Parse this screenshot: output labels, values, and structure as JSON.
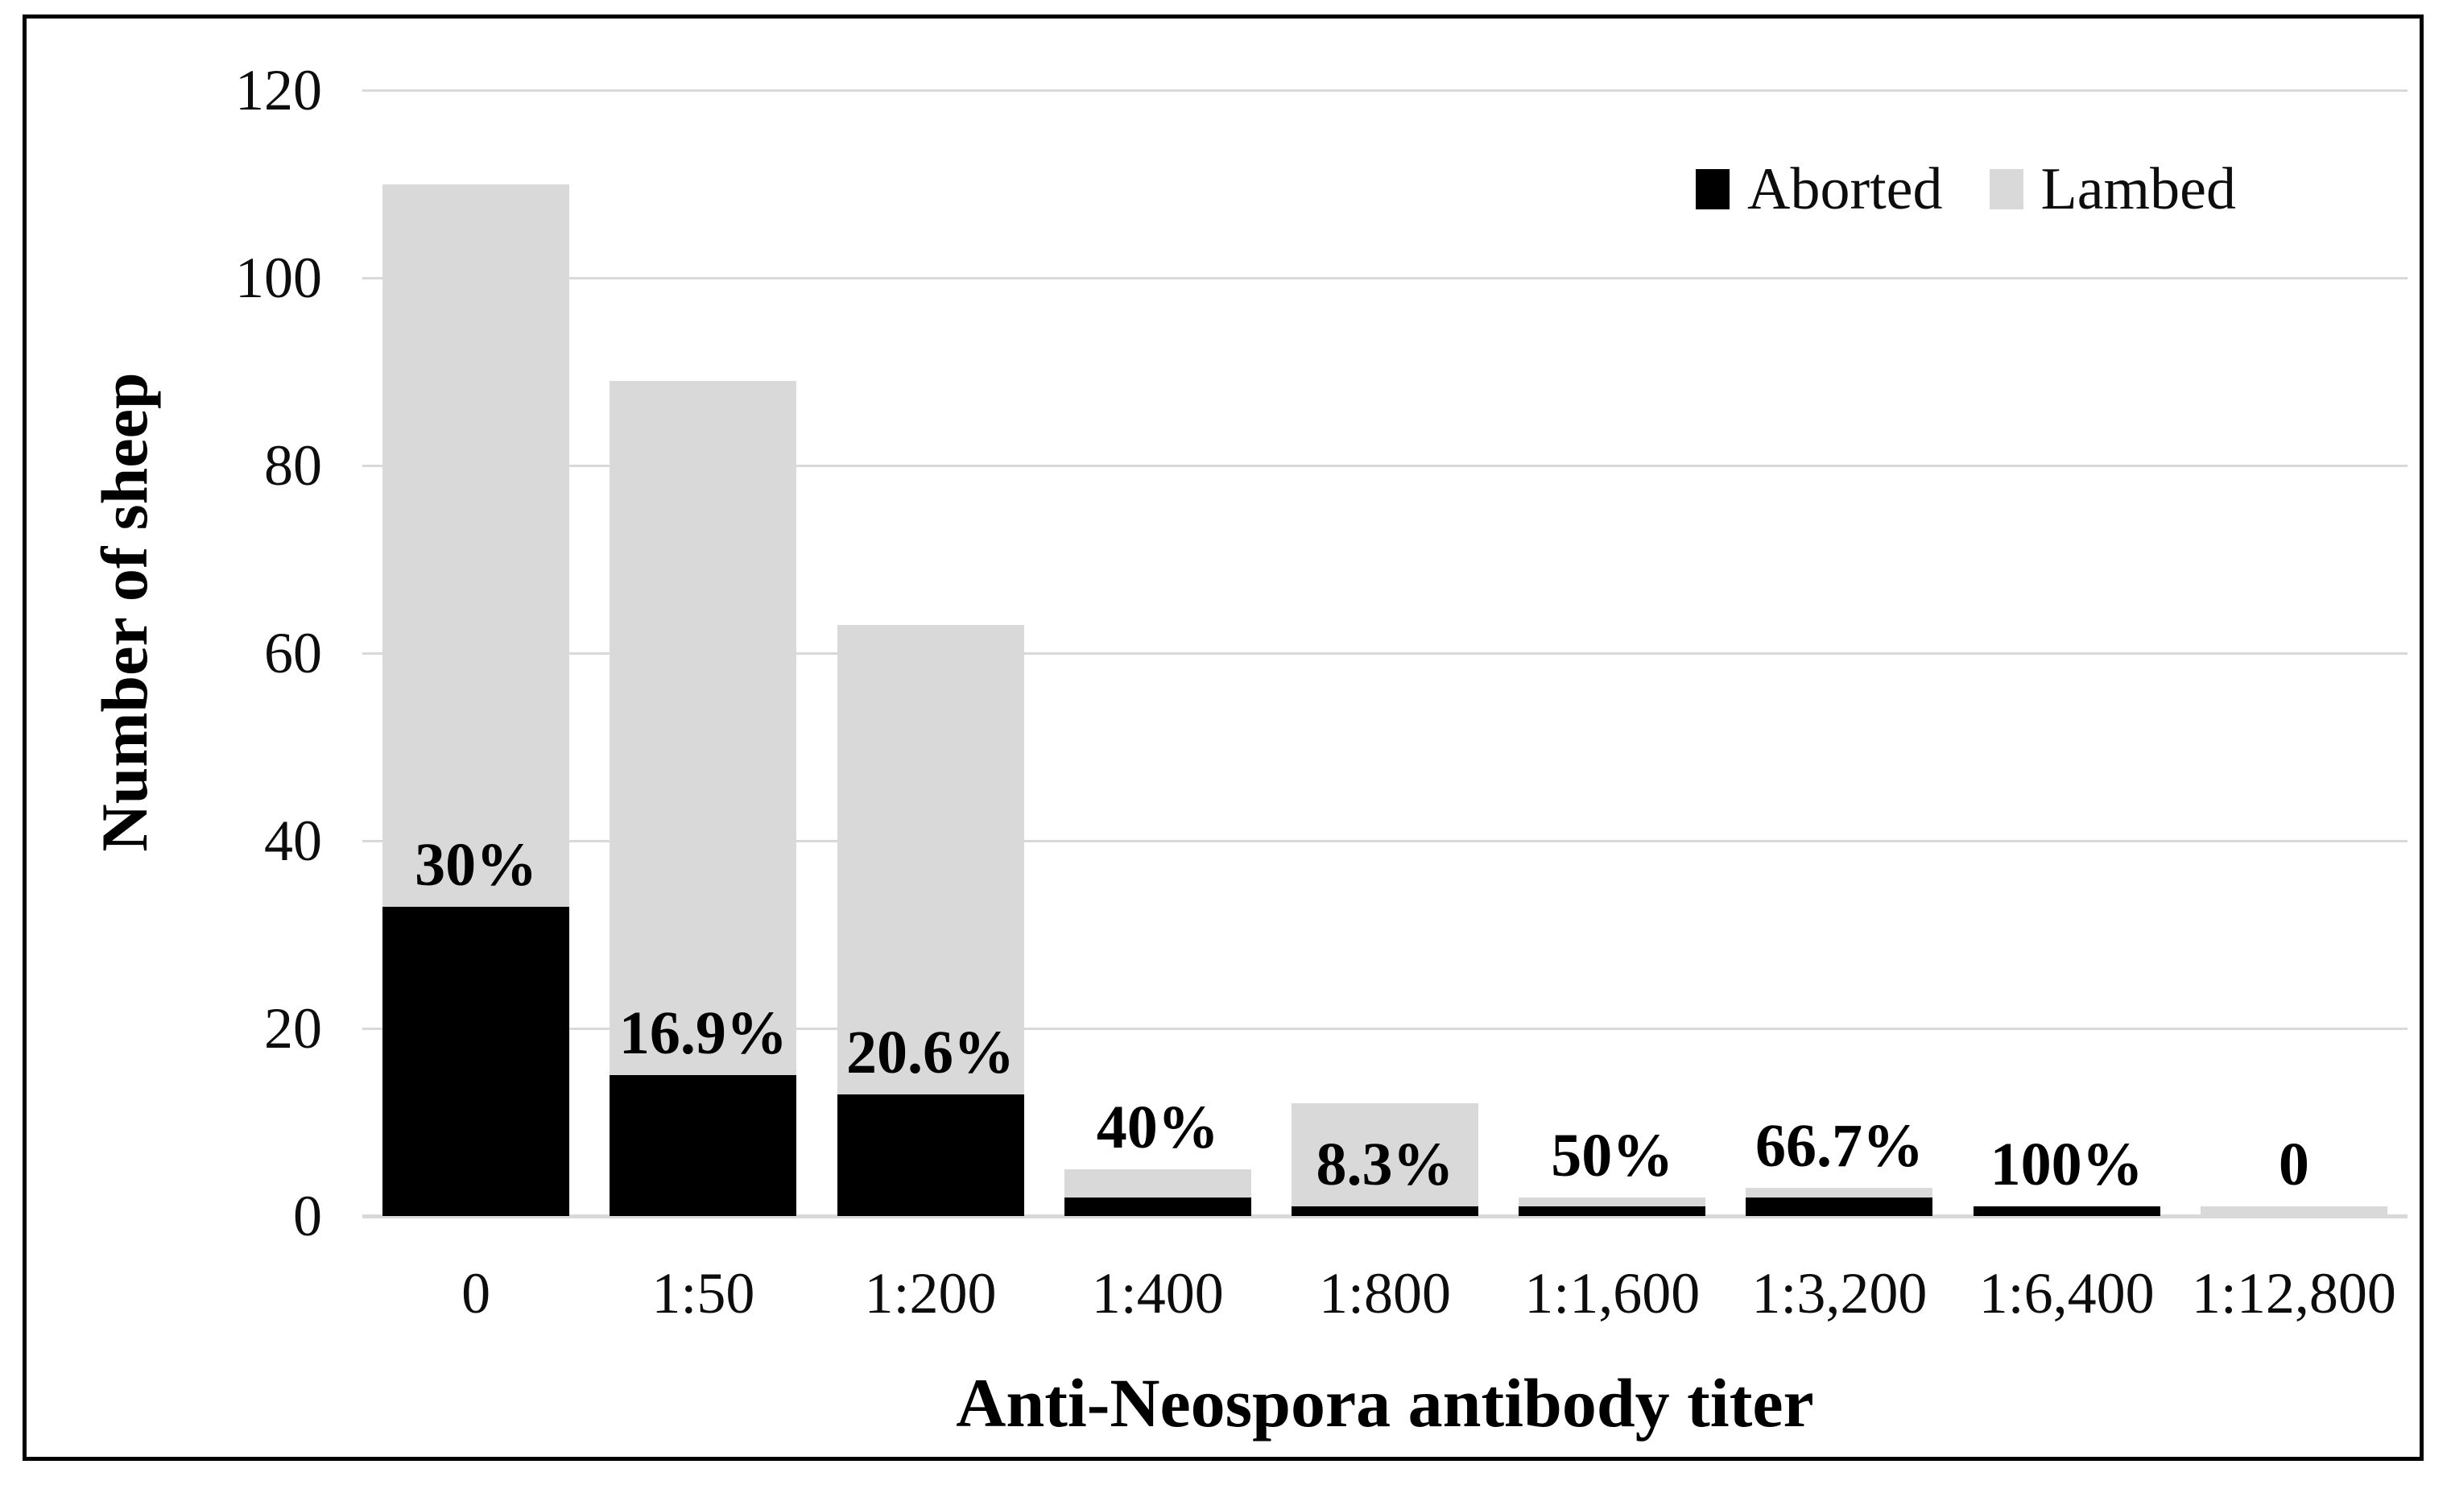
{
  "chart_data": {
    "type": "bar",
    "stacked": true,
    "categories": [
      "0",
      "1:50",
      "1:200",
      "1:400",
      "1:800",
      "1:1,600",
      "1:3,200",
      "1:6,400",
      "1:12,800"
    ],
    "series": [
      {
        "name": "Aborted",
        "color": "#000000",
        "values": [
          33,
          15,
          13,
          2,
          1,
          1,
          2,
          1,
          0
        ]
      },
      {
        "name": "Lambed",
        "color": "#d9d9d9",
        "values": [
          77,
          74,
          50,
          3,
          11,
          1,
          1,
          0,
          1
        ]
      }
    ],
    "totals": [
      110,
      89,
      63,
      5,
      12,
      2,
      3,
      1,
      1
    ],
    "data_labels": [
      "30%",
      "16.9%",
      "20.6%",
      "40%",
      "8.3%",
      "50%",
      "66.7%",
      "100%",
      "0"
    ],
    "xlabel": "Anti-Neospora antibody titer",
    "ylabel": "Number of sheep",
    "ylim": [
      0,
      120
    ],
    "yticks": [
      "0",
      "20",
      "40",
      "60",
      "80",
      "100",
      "120"
    ],
    "ytick_interval": 20,
    "grid": true,
    "legend_position": "top-right",
    "colors": {
      "gridline": "#d9d9d9",
      "axis_line": "#d9d9d9",
      "text": "#0d0d0d",
      "label_text": "#000000",
      "frame_border": "#000000",
      "background": "#ffffff"
    }
  }
}
